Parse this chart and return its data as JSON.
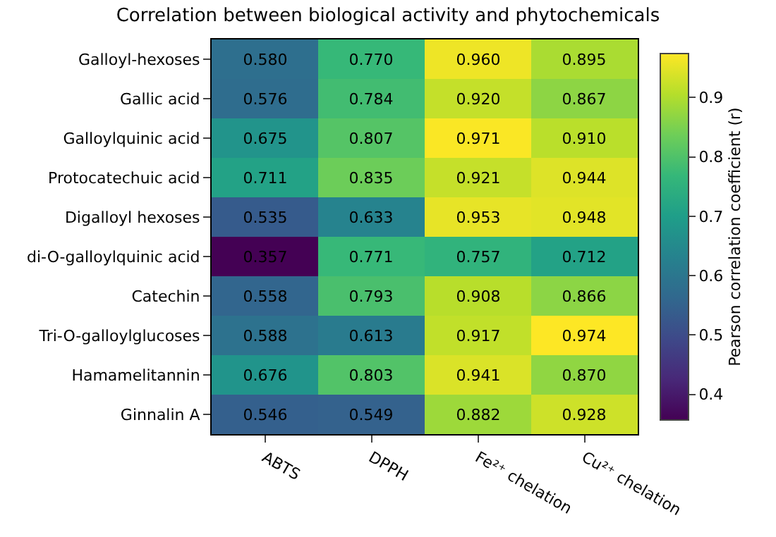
{
  "chart_data": {
    "type": "heatmap",
    "title": "Correlation between biological activity and phytochemicals",
    "categories": [
      "ABTS",
      "DPPH",
      "Fe²⁺ chelation",
      "Cu²⁺ chelation"
    ],
    "y_categories": [
      "Galloyl-hexoses",
      "Gallic acid",
      "Galloylquinic acid",
      "Protocatechuic acid",
      "Digalloyl hexoses",
      "di-O-galloylquinic acid",
      "Catechin",
      "Tri-O-galloylglucoses",
      "Hamamelitannin",
      "Ginnalin A"
    ],
    "cells": [
      [
        0.58,
        0.77,
        0.96,
        0.895
      ],
      [
        0.576,
        0.784,
        0.92,
        0.867
      ],
      [
        0.675,
        0.807,
        0.971,
        0.91
      ],
      [
        0.711,
        0.835,
        0.921,
        0.944
      ],
      [
        0.535,
        0.633,
        0.953,
        0.948
      ],
      [
        0.357,
        0.771,
        0.757,
        0.712
      ],
      [
        0.558,
        0.793,
        0.908,
        0.866
      ],
      [
        0.588,
        0.613,
        0.917,
        0.974
      ],
      [
        0.676,
        0.803,
        0.941,
        0.87
      ],
      [
        0.546,
        0.549,
        0.882,
        0.928
      ]
    ],
    "cell_labels": [
      [
        "0.580",
        "0.770",
        "0.960",
        "0.895"
      ],
      [
        "0.576",
        "0.784",
        "0.920",
        "0.867"
      ],
      [
        "0.675",
        "0.807",
        "0.971",
        "0.910"
      ],
      [
        "0.711",
        "0.835",
        "0.921",
        "0.944"
      ],
      [
        "0.535",
        "0.633",
        "0.953",
        "0.948"
      ],
      [
        "0.357",
        "0.771",
        "0.757",
        "0.712"
      ],
      [
        "0.558",
        "0.793",
        "0.908",
        "0.866"
      ],
      [
        "0.588",
        "0.613",
        "0.917",
        "0.974"
      ],
      [
        "0.676",
        "0.803",
        "0.941",
        "0.870"
      ],
      [
        "0.546",
        "0.549",
        "0.882",
        "0.928"
      ]
    ],
    "clabel": "Pearson correlation coefficient (r)",
    "clim": [
      0.357,
      0.974
    ],
    "cticks": [
      0.4,
      0.5,
      0.6,
      0.7,
      0.8,
      0.9
    ]
  }
}
